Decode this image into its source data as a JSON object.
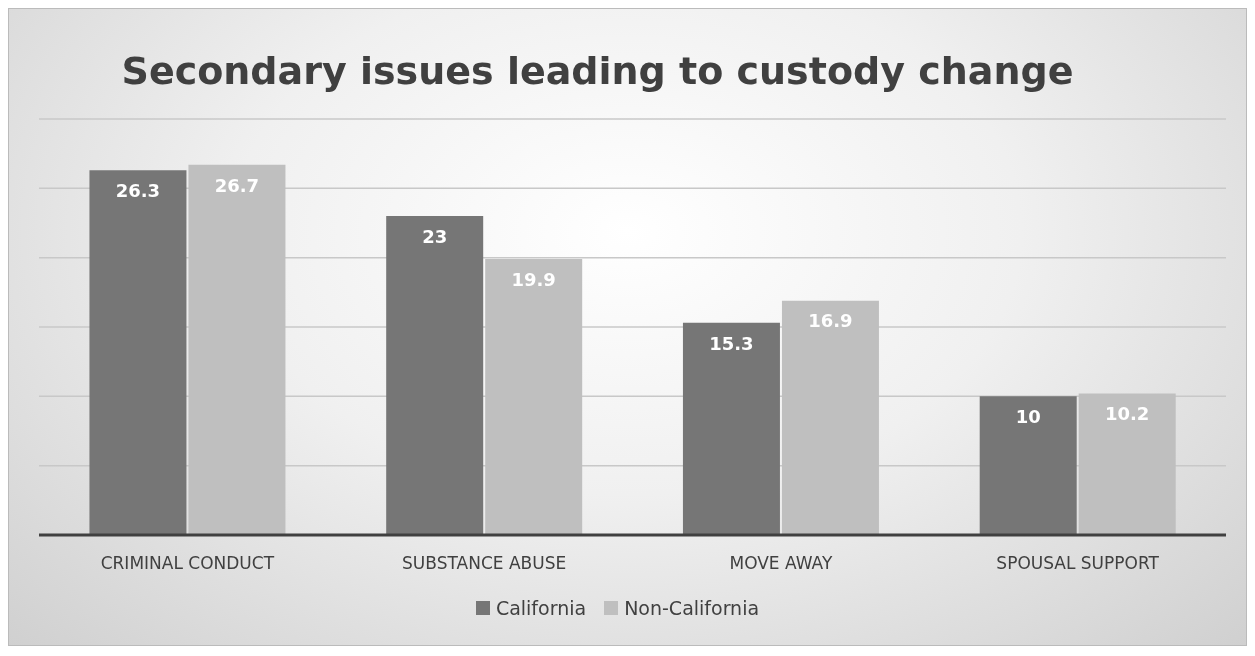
{
  "chart_data": {
    "type": "bar",
    "title": "Secondary issues leading to custody change",
    "categories": [
      "CRIMINAL CONDUCT",
      "SUBSTANCE ABUSE",
      "MOVE AWAY",
      "SPOUSAL SUPPORT"
    ],
    "series": [
      {
        "name": "California",
        "color": "#767676",
        "values": [
          26.3,
          23,
          15.3,
          10
        ]
      },
      {
        "name": "Non-California",
        "color": "#bfbfbf",
        "values": [
          26.7,
          19.9,
          16.9,
          10.2
        ]
      }
    ],
    "ylim": [
      0,
      30
    ],
    "yticks": [
      {
        "value": 0,
        "label": null
      },
      {
        "value": 5,
        "label": null
      },
      {
        "value": 10,
        "label": null
      },
      {
        "value": 15,
        "label": null
      },
      {
        "value": 20,
        "label": null
      },
      {
        "value": 25,
        "label": null
      },
      {
        "value": 30,
        "label": null
      }
    ],
    "tick_labels": "x",
    "grid": "y",
    "data_labels": true,
    "legend": "bottom"
  }
}
